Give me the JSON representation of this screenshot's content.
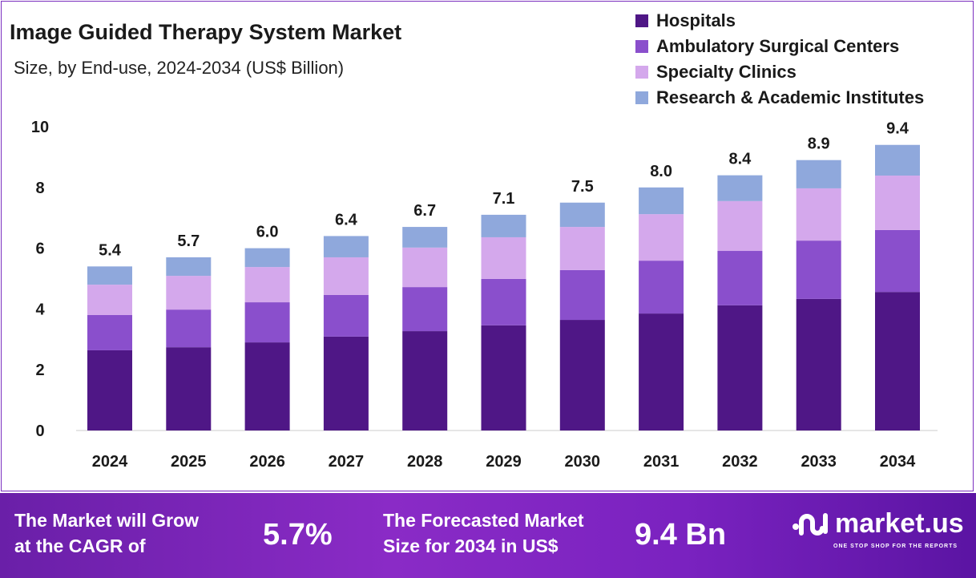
{
  "chart_data": {
    "type": "bar",
    "stacked": true,
    "title": "Image Guided Therapy System Market",
    "subtitle": "Size, by End-use, 2024-2034 (US$ Billion)",
    "categories": [
      "2024",
      "2025",
      "2026",
      "2027",
      "2028",
      "2029",
      "2030",
      "2031",
      "2032",
      "2033",
      "2034"
    ],
    "series": [
      {
        "name": "Hospitals",
        "color": "#4f1786",
        "values": [
          2.64,
          2.74,
          2.9,
          3.09,
          3.27,
          3.46,
          3.64,
          3.85,
          4.12,
          4.33,
          4.56
        ]
      },
      {
        "name": "Ambulatory Surgical Centers",
        "color": "#8a4fcc",
        "values": [
          1.16,
          1.24,
          1.32,
          1.37,
          1.45,
          1.53,
          1.64,
          1.74,
          1.79,
          1.92,
          2.04
        ]
      },
      {
        "name": "Specialty Clinics",
        "color": "#d4a8ec",
        "values": [
          1.0,
          1.11,
          1.16,
          1.24,
          1.3,
          1.37,
          1.42,
          1.53,
          1.64,
          1.72,
          1.79
        ]
      },
      {
        "name": "Research & Academic Institutes",
        "color": "#8fa8dc",
        "values": [
          0.6,
          0.61,
          0.62,
          0.7,
          0.68,
          0.74,
          0.8,
          0.88,
          0.85,
          0.93,
          1.01
        ]
      }
    ],
    "totals": [
      "5.4",
      "5.7",
      "6.0",
      "6.4",
      "6.7",
      "7.1",
      "7.5",
      "8.0",
      "8.4",
      "8.9",
      "9.4"
    ],
    "yticks": [
      "0",
      "2",
      "4",
      "6",
      "8",
      "10"
    ],
    "ylim": [
      0,
      10
    ],
    "legend": "top-right",
    "grid": false
  },
  "footer": {
    "cagr_text_1": "The Market will Grow",
    "cagr_text_2": "at the CAGR of",
    "cagr_value": "5.7%",
    "forecast_text_1": "The Forecasted Market",
    "forecast_text_2": "Size for 2034 in US$",
    "forecast_value": "9.4 Bn",
    "brand": "market.us",
    "tagline": "ONE STOP SHOP FOR THE REPORTS"
  }
}
